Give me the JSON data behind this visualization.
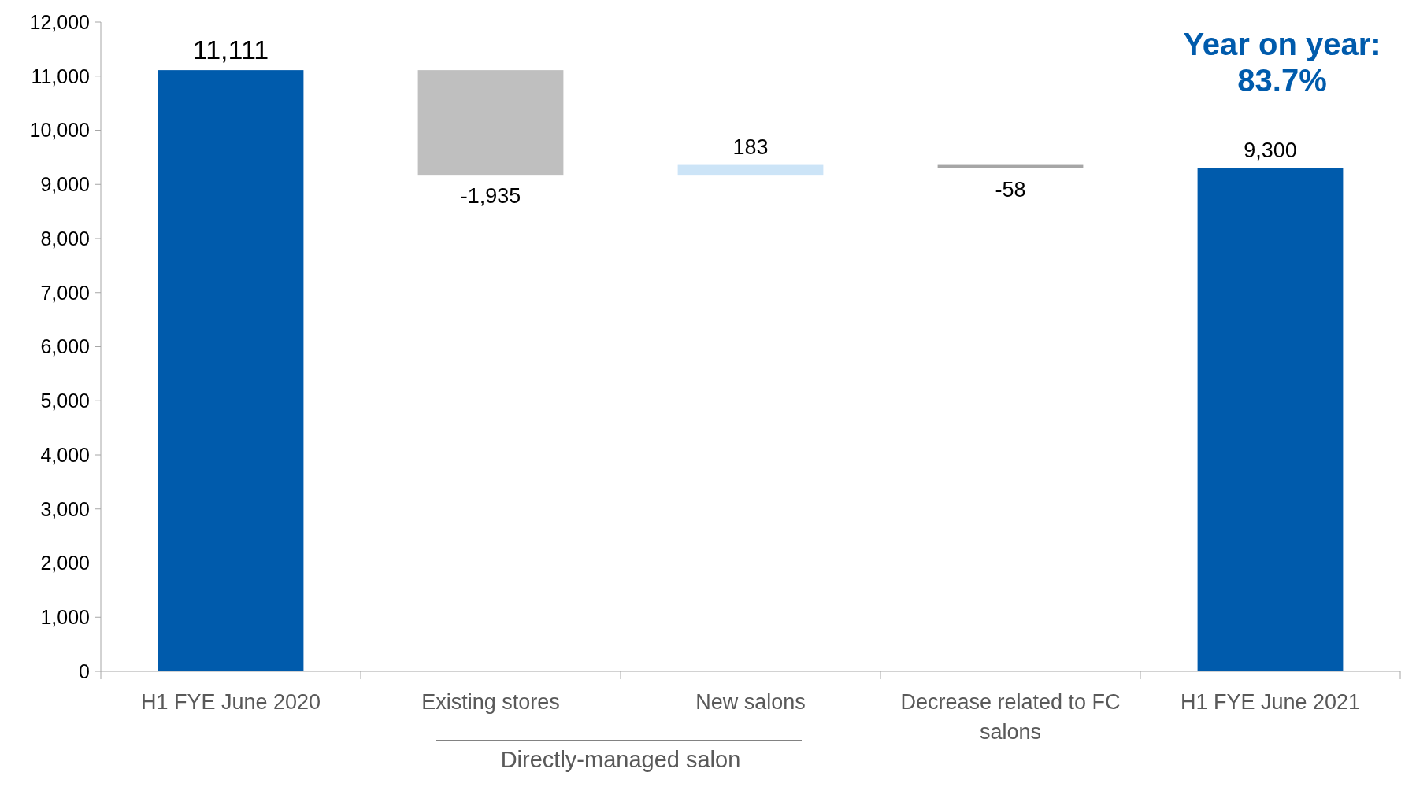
{
  "chart_data": {
    "type": "bar",
    "categories": [
      "H1 FYE June 2020",
      "Existing stores",
      "New salons",
      "Decrease related to FC salons",
      "H1 FYE June 2021"
    ],
    "values": [
      11111,
      -1935,
      183,
      -58,
      9300
    ],
    "base": [
      0,
      11111,
      9176,
      9359,
      0
    ],
    "colors": [
      "#005bac",
      "#bfbfbf",
      "#cce4f7",
      "#a6a6a6",
      "#005bac"
    ],
    "value_labels": [
      "11,111",
      "-1,935",
      "183",
      "-58",
      "9,300"
    ],
    "ylim": [
      0,
      12000
    ],
    "yticks": [
      0,
      {
        "value": 1000,
        "label": "1,000"
      },
      {
        "value": 2000,
        "label": "2,000"
      },
      {
        "value": 3000,
        "label": "3,000"
      },
      {
        "value": 4000,
        "label": "4,000"
      },
      {
        "value": 5000,
        "label": "5,000"
      },
      {
        "value": 6000,
        "label": "6,000"
      },
      {
        "value": 7000,
        "label": "7,000"
      },
      {
        "value": 8000,
        "label": "8,000"
      },
      {
        "value": 9000,
        "label": "9,000"
      },
      {
        "value": 10000,
        "label": "10,000"
      },
      {
        "value": 11000,
        "label": "11,000"
      },
      {
        "value": 12000,
        "label": "12,000"
      }
    ],
    "annotations": [
      "Year on year: 83.7%",
      "Directly-managed salon"
    ],
    "grid": false
  }
}
